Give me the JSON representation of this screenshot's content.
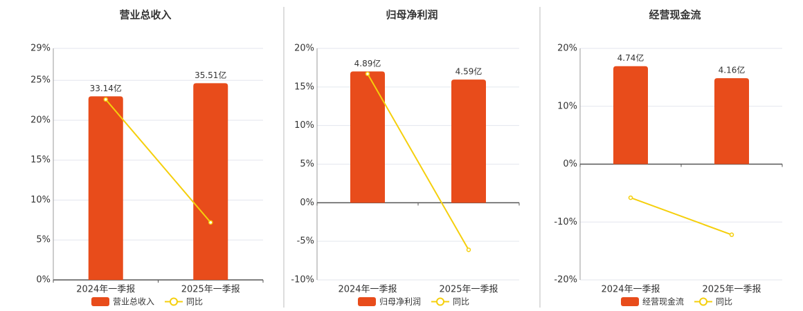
{
  "chart_data": [
    {
      "type": "bar",
      "title": "营业总收入",
      "categories": [
        "2024年一季报",
        "2025年一季报"
      ],
      "series": [
        {
          "name": "营业总收入",
          "color": "#e84c1b",
          "values": [
            33.14,
            35.51
          ],
          "value_labels": [
            "33.14亿",
            "35.51亿"
          ],
          "axis": "y2"
        },
        {
          "name": "同比",
          "color": "#f5cf0c",
          "values": [
            22.6,
            7.2
          ]
        }
      ],
      "ylim": [
        0,
        29
      ],
      "yticks": [
        {
          "value": 0,
          "label": "0%"
        },
        {
          "value": 5,
          "label": "5%"
        },
        {
          "value": 10,
          "label": "10%"
        },
        {
          "value": 15,
          "label": "15%"
        },
        {
          "value": 20,
          "label": "20%"
        },
        {
          "value": 25,
          "label": "25%"
        },
        {
          "value": 29,
          "label": "29%"
        }
      ],
      "y2lim": [
        0,
        41.8
      ],
      "grid": true
    },
    {
      "type": "bar",
      "title": "归母净利润",
      "categories": [
        "2024年一季报",
        "2025年一季报"
      ],
      "series": [
        {
          "name": "归母净利润",
          "color": "#e84c1b",
          "values": [
            4.89,
            4.59
          ],
          "value_labels": [
            "4.89亿",
            "4.59亿"
          ],
          "axis": "y2"
        },
        {
          "name": "同比",
          "color": "#f5cf0c",
          "values": [
            16.7,
            -6.1
          ]
        }
      ],
      "ylim": [
        -10,
        20
      ],
      "yticks": [
        {
          "value": -10,
          "label": "-10%"
        },
        {
          "value": -5,
          "label": "-5%"
        },
        {
          "value": 0,
          "label": "0%"
        },
        {
          "value": 5,
          "label": "5%"
        },
        {
          "value": 10,
          "label": "10%"
        },
        {
          "value": 15,
          "label": "15%"
        },
        {
          "value": 20,
          "label": "20%"
        }
      ],
      "y2lim": [
        -2.87,
        5.75
      ],
      "grid": true
    },
    {
      "type": "bar",
      "title": "经营现金流",
      "categories": [
        "2024年一季报",
        "2025年一季报"
      ],
      "series": [
        {
          "name": "经营现金流",
          "color": "#e84c1b",
          "values": [
            4.74,
            4.16
          ],
          "value_labels": [
            "4.74亿",
            "4.16亿"
          ],
          "axis": "y2"
        },
        {
          "name": "同比",
          "color": "#f5cf0c",
          "values": [
            -5.8,
            -12.2
          ]
        }
      ],
      "ylim": [
        -20,
        20
      ],
      "yticks": [
        {
          "value": -20,
          "label": "-20%"
        },
        {
          "value": -10,
          "label": "-10%"
        },
        {
          "value": 0,
          "label": "0%"
        },
        {
          "value": 10,
          "label": "10%"
        },
        {
          "value": 20,
          "label": "20%"
        }
      ],
      "y2lim": [
        -5.6,
        5.6
      ],
      "grid": true
    }
  ]
}
